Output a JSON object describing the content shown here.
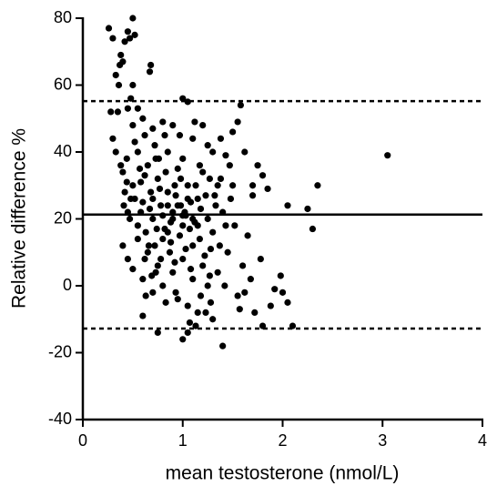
{
  "chart_data": {
    "type": "scatter",
    "xlabel": "mean testosterone (nmol/L)",
    "ylabel": "Relative difference %",
    "xlim": [
      0,
      4
    ],
    "xticks": [
      0,
      1,
      2,
      3,
      4
    ],
    "ylim": [
      -40,
      80
    ],
    "yticks": [
      -40,
      -20,
      0,
      20,
      40,
      60,
      80
    ],
    "color": "#000000",
    "reference_lines": [
      {
        "value": 55.2,
        "style": "dashed"
      },
      {
        "value": 21.3,
        "style": "solid"
      },
      {
        "value": -12.8,
        "style": "dashed"
      }
    ],
    "x": [
      0.26,
      0.3,
      0.5,
      0.45,
      0.42,
      0.47,
      0.52,
      0.38,
      0.37,
      0.4,
      0.36,
      0.33,
      0.68,
      0.67,
      0.28,
      0.35,
      0.45,
      0.5,
      0.55,
      0.5,
      0.48,
      0.3,
      0.33,
      0.38,
      1.0,
      1.05,
      1.58,
      1.55,
      1.5,
      3.05,
      2.35,
      2.25,
      2.3,
      2.05,
      2.1,
      2.0,
      2.05,
      1.98,
      1.8,
      1.4,
      1.0,
      1.05,
      0.75,
      0.6,
      1.85,
      1.75,
      1.8,
      1.7,
      1.7,
      0.6,
      0.62,
      0.7,
      0.8,
      0.72,
      0.9,
      0.85,
      1.1,
      1.2,
      1.25,
      1.3,
      0.4,
      0.42,
      0.45,
      0.5,
      0.55,
      0.6,
      0.65,
      0.7,
      0.75,
      0.8,
      0.85,
      0.9,
      0.95,
      1.0,
      1.05,
      1.1,
      1.15,
      1.2,
      1.25,
      1.3,
      0.4,
      0.45,
      0.5,
      0.55,
      0.6,
      0.65,
      0.7,
      0.75,
      0.8,
      0.85,
      0.9,
      0.95,
      1.0,
      1.05,
      1.1,
      1.15,
      1.2,
      1.25,
      1.3,
      1.35,
      0.44,
      0.52,
      0.58,
      0.63,
      0.68,
      0.73,
      0.78,
      0.83,
      0.88,
      0.93,
      0.98,
      1.03,
      1.08,
      1.13,
      1.18,
      1.23,
      1.28,
      1.33,
      1.38,
      1.43,
      0.47,
      0.57,
      0.62,
      0.67,
      0.72,
      0.77,
      0.82,
      0.87,
      0.92,
      0.97,
      1.02,
      1.07,
      1.12,
      1.17,
      1.22,
      1.27,
      1.32,
      1.37,
      1.42,
      1.47,
      1.4,
      1.45,
      1.5,
      1.55,
      1.6,
      1.62,
      1.65,
      1.68,
      1.72,
      1.78,
      1.88,
      1.92,
      1.52,
      1.57,
      1.62,
      1.48,
      1.43,
      1.38,
      1.35,
      1.28,
      0.9,
      0.95,
      1.0,
      1.05,
      1.1,
      1.15,
      0.85,
      0.8,
      0.78,
      0.88,
      0.93,
      0.98,
      1.03,
      1.08,
      1.13,
      0.83,
      0.73,
      1.18,
      1.23,
      1.0,
      0.55,
      0.58,
      0.62,
      0.66,
      0.7,
      0.74,
      0.52,
      0.48,
      0.44,
      0.41,
      0.63,
      0.69,
      0.76,
      0.82,
      0.97,
      1.07,
      1.17,
      1.27,
      1.12,
      0.92
    ],
    "y": [
      77,
      74,
      80,
      76,
      73,
      74,
      75,
      69,
      66,
      67,
      60,
      63,
      66,
      64,
      52,
      52,
      53,
      48,
      53,
      60,
      56,
      44,
      40,
      36,
      56,
      55,
      54,
      49,
      46,
      39,
      30,
      23,
      17,
      24,
      -12,
      -2,
      -5,
      3,
      -12,
      -18,
      -16,
      -14,
      -14,
      -9,
      29,
      36,
      33,
      30,
      27,
      50,
      45,
      47,
      49,
      42,
      48,
      40,
      44,
      48,
      42,
      40,
      34,
      28,
      22,
      30,
      18,
      25,
      36,
      20,
      32,
      14,
      28,
      22,
      35,
      18,
      30,
      12,
      26,
      34,
      20,
      16,
      12,
      8,
      5,
      14,
      2,
      10,
      -2,
      6,
      0,
      24,
      4,
      -4,
      8,
      -6,
      2,
      -8,
      6,
      0,
      -10,
      4,
      38,
      26,
      31,
      16,
      28,
      38,
      24,
      34,
      19,
      27,
      24,
      21,
      25,
      30,
      23,
      27,
      11,
      24,
      32,
      18,
      20,
      35,
      8,
      23,
      12,
      29,
      17,
      10,
      30,
      15,
      22,
      17,
      19,
      14,
      9,
      3,
      27,
      12,
      0,
      36,
      22,
      10,
      30,
      -3,
      6,
      40,
      15,
      2,
      -8,
      8,
      -6,
      -1,
      18,
      -7,
      -2,
      26,
      39,
      44,
      30,
      -5,
      20,
      24,
      21,
      26,
      20,
      18,
      16,
      21,
      8,
      13,
      -2,
      32,
      11,
      5,
      -12,
      -5,
      4,
      -3,
      -8,
      38,
      40,
      22,
      33,
      12,
      26,
      17,
      43,
      26,
      31,
      24,
      -3,
      3,
      38,
      45,
      45,
      -11,
      36,
      32,
      49,
      7
    ]
  }
}
